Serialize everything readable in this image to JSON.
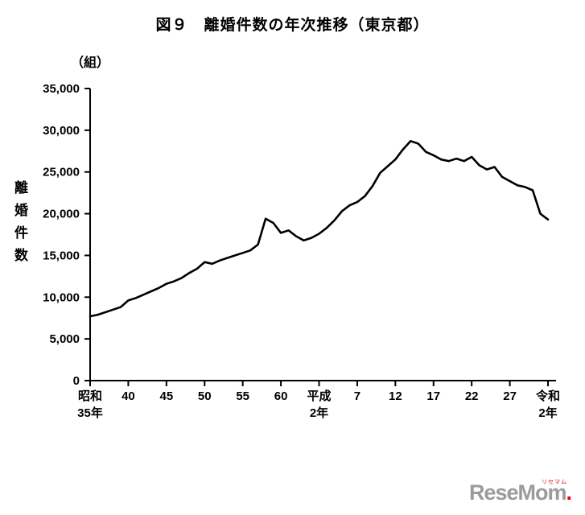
{
  "title": "図９　離婚件数の年次推移（東京都）",
  "unit_label": "（組）",
  "y_axis_title_chars": [
    "離",
    "婚",
    "件",
    "数"
  ],
  "logo": {
    "text": "ReseMom",
    "dot": ".",
    "ruby": "リセマム"
  },
  "chart_data": {
    "type": "line",
    "title": "図９　離婚件数の年次推移（東京都）",
    "ylabel": "離婚件数",
    "unit": "組",
    "ylim": [
      0,
      35000
    ],
    "grid": false,
    "legend": "none",
    "line_color": "#000000",
    "years": [
      1960,
      1961,
      1962,
      1963,
      1964,
      1965,
      1966,
      1967,
      1968,
      1969,
      1970,
      1971,
      1972,
      1973,
      1974,
      1975,
      1976,
      1977,
      1978,
      1979,
      1980,
      1981,
      1982,
      1983,
      1984,
      1985,
      1986,
      1987,
      1988,
      1989,
      1990,
      1991,
      1992,
      1993,
      1994,
      1995,
      1996,
      1997,
      1998,
      1999,
      2000,
      2001,
      2002,
      2003,
      2004,
      2005,
      2006,
      2007,
      2008,
      2009,
      2010,
      2011,
      2012,
      2013,
      2014,
      2015,
      2016,
      2017,
      2018,
      2019,
      2020
    ],
    "values": [
      7700,
      7900,
      8200,
      8500,
      8800,
      9600,
      9900,
      10300,
      10700,
      11100,
      11600,
      11900,
      12300,
      12900,
      13400,
      14200,
      14000,
      14400,
      14700,
      15000,
      15300,
      15600,
      16300,
      19400,
      18900,
      17700,
      18000,
      17300,
      16800,
      17100,
      17600,
      18300,
      19200,
      20300,
      21000,
      21400,
      22100,
      23300,
      24900,
      25700,
      26500,
      27700,
      28700,
      28400,
      27400,
      27000,
      26500,
      26300,
      26600,
      26300,
      26800,
      25800,
      25300,
      25600,
      24400,
      23900,
      23400,
      23200,
      22800,
      20000,
      19300
    ],
    "y_ticks": [
      0,
      5000,
      10000,
      15000,
      20000,
      25000,
      30000,
      35000
    ],
    "y_tick_labels": [
      "0",
      "5,000",
      "10,000",
      "15,000",
      "20,000",
      "25,000",
      "30,000",
      "35,000"
    ],
    "x_tick_labels": [
      {
        "line1": "昭和",
        "line2": "35年"
      },
      {
        "line1": "40"
      },
      {
        "line1": "45"
      },
      {
        "line1": "50"
      },
      {
        "line1": "55"
      },
      {
        "line1": "60"
      },
      {
        "line1": "平成",
        "line2": "2年"
      },
      {
        "line1": "7"
      },
      {
        "line1": "12"
      },
      {
        "line1": "17"
      },
      {
        "line1": "22"
      },
      {
        "line1": "27"
      },
      {
        "line1": "令和",
        "line2": "2年"
      }
    ]
  }
}
